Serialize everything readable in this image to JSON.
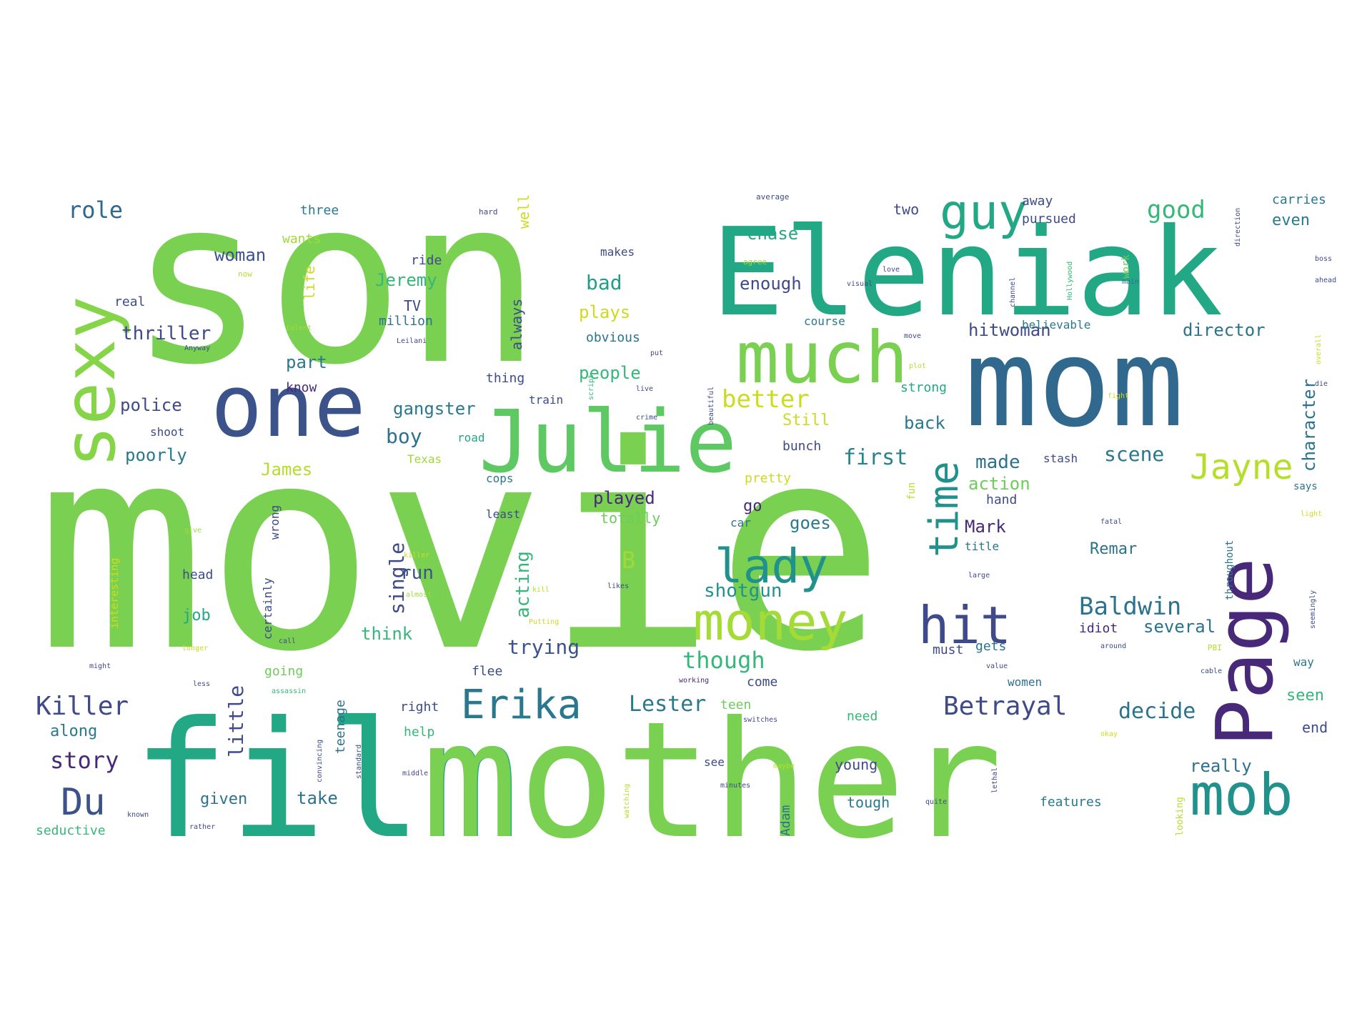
{
  "words": [
    {
      "text": "movie",
      "color": "#7ad151",
      "size": 60
    },
    {
      "text": "son",
      "color": "#7ad151",
      "size": 60
    },
    {
      "text": "film",
      "color": "#22a884",
      "size": 60
    },
    {
      "text": "mother",
      "color": "#7ad151",
      "size": 60
    },
    {
      "text": "Eleniak",
      "color": "#22a884",
      "size": 46
    },
    {
      "text": "mom",
      "color": "#31688e",
      "size": 46
    },
    {
      "text": "one",
      "color": "#3b528b",
      "size": 38
    },
    {
      "text": "Julie",
      "color": "#5ec962",
      "size": 38
    },
    {
      "text": "much",
      "color": "#7ad151",
      "size": 34
    },
    {
      "text": "sexy",
      "color": "#86d549",
      "size": 34
    },
    {
      "text": "Page",
      "color": "#482878",
      "size": 36
    },
    {
      "text": "guy",
      "color": "#22a884",
      "size": 28
    },
    {
      "text": "mob",
      "color": "#21918c",
      "size": 30
    },
    {
      "text": "money",
      "color": "#a5db36",
      "size": 30
    },
    {
      "text": "hit",
      "color": "#3e4a89",
      "size": 30
    },
    {
      "text": "lady",
      "color": "#21918c",
      "size": 28
    },
    {
      "text": "time",
      "color": "#21918c",
      "size": 26
    },
    {
      "text": "Erika",
      "color": "#2a788e",
      "size": 26
    },
    {
      "text": "Jayne",
      "color": "#b5de2b",
      "size": 24
    },
    {
      "text": "Du",
      "color": "#3b528b",
      "size": 24
    },
    {
      "text": "Betrayal",
      "color": "#3e4a89",
      "size": 16
    },
    {
      "text": "Killer",
      "color": "#3e4a89",
      "size": 16
    },
    {
      "text": "Baldwin",
      "color": "#2c728e",
      "size": 16
    },
    {
      "text": "good",
      "color": "#35b779",
      "size": 16
    },
    {
      "text": "role",
      "color": "#31688e",
      "size": 16
    },
    {
      "text": "better",
      "color": "#cddb1f",
      "size": 15
    },
    {
      "text": "though",
      "color": "#35b779",
      "size": 15
    },
    {
      "text": "Lester",
      "color": "#2a788e",
      "size": 14
    },
    {
      "text": "story",
      "color": "#482878",
      "size": 14
    },
    {
      "text": "little",
      "color": "#3e4a89",
      "size": 14
    },
    {
      "text": "decide",
      "color": "#2c728e",
      "size": 14
    },
    {
      "text": "trying",
      "color": "#3b528b",
      "size": 13
    },
    {
      "text": "bad",
      "color": "#1f9e89",
      "size": 13
    },
    {
      "text": "first",
      "color": "#26828e",
      "size": 13
    },
    {
      "text": "scene",
      "color": "#2a788e",
      "size": 13
    },
    {
      "text": "shotgun",
      "color": "#21918c",
      "size": 13
    },
    {
      "text": "single",
      "color": "#3e4a89",
      "size": 13
    },
    {
      "text": "acting",
      "color": "#35b779",
      "size": 12
    },
    {
      "text": "thriller",
      "color": "#3e4a89",
      "size": 12
    },
    {
      "text": "boy",
      "color": "#2c728e",
      "size": 13
    },
    {
      "text": "made",
      "color": "#2c728e",
      "size": 12
    },
    {
      "text": "character",
      "color": "#2c728e",
      "size": 12
    },
    {
      "text": "director",
      "color": "#2c728e",
      "size": 11
    },
    {
      "text": "B",
      "color": "#a0da39",
      "size": 13
    },
    {
      "text": "think",
      "color": "#35b779",
      "size": 11
    },
    {
      "text": "run",
      "color": "#3b528b",
      "size": 11
    },
    {
      "text": "chase",
      "color": "#22a884",
      "size": 11
    },
    {
      "text": "enough",
      "color": "#3e4a89",
      "size": 11
    },
    {
      "text": "action",
      "color": "#6ccd5a",
      "size": 11
    },
    {
      "text": "woman",
      "color": "#3b528b",
      "size": 11
    },
    {
      "text": "Jeremy",
      "color": "#35b779",
      "size": 11
    },
    {
      "text": "part",
      "color": "#2a788e",
      "size": 11
    },
    {
      "text": "police",
      "color": "#3e4a89",
      "size": 11
    },
    {
      "text": "poorly",
      "color": "#2a788e",
      "size": 11
    },
    {
      "text": "people",
      "color": "#35b779",
      "size": 11
    },
    {
      "text": "plays",
      "color": "#cddb1f",
      "size": 11
    },
    {
      "text": "played",
      "color": "#482878",
      "size": 11
    },
    {
      "text": "goes",
      "color": "#2a788e",
      "size": 11
    },
    {
      "text": "gangster",
      "color": "#2a788e",
      "size": 11
    },
    {
      "text": "hitwoman",
      "color": "#3e4a89",
      "size": 11
    },
    {
      "text": "Remar",
      "color": "#2c728e",
      "size": 10
    },
    {
      "text": "several",
      "color": "#2c728e",
      "size": 11
    },
    {
      "text": "really",
      "color": "#2c728e",
      "size": 11
    },
    {
      "text": "seen",
      "color": "#35b779",
      "size": 11
    },
    {
      "text": "along",
      "color": "#2a788e",
      "size": 11
    },
    {
      "text": "given",
      "color": "#2c728e",
      "size": 11
    },
    {
      "text": "take",
      "color": "#2c728e",
      "size": 11
    },
    {
      "text": "James",
      "color": "#b5de2b",
      "size": 11
    },
    {
      "text": "Mark",
      "color": "#482878",
      "size": 11
    },
    {
      "text": "back",
      "color": "#2a788e",
      "size": 11
    },
    {
      "text": "Still",
      "color": "#cddb1f",
      "size": 11
    },
    {
      "text": "always",
      "color": "#3e4a89",
      "size": 10
    },
    {
      "text": "well",
      "color": "#cddb1f",
      "size": 10
    },
    {
      "text": "life",
      "color": "#cddb1f",
      "size": 10
    },
    {
      "text": "two",
      "color": "#3e4a89",
      "size": 10
    },
    {
      "text": "three",
      "color": "#2a788e",
      "size": 10
    },
    {
      "text": "wants",
      "color": "#a0da39",
      "size": 10
    },
    {
      "text": "ride",
      "color": "#3e4a89",
      "size": 10
    },
    {
      "text": "makes",
      "color": "#3e4a89",
      "size": 9
    },
    {
      "text": "TV",
      "color": "#3e4a89",
      "size": 10
    },
    {
      "text": "million",
      "color": "#2c728e",
      "size": 10
    },
    {
      "text": "real",
      "color": "#3e4a89",
      "size": 10
    },
    {
      "text": "obvious",
      "color": "#2c728e",
      "size": 10
    },
    {
      "text": "thing",
      "color": "#3e4a89",
      "size": 10
    },
    {
      "text": "know",
      "color": "#482878",
      "size": 10
    },
    {
      "text": "shoot",
      "color": "#3e4a89",
      "size": 9
    },
    {
      "text": "road",
      "color": "#22a884",
      "size": 9
    },
    {
      "text": "Texas",
      "color": "#a0da39",
      "size": 9
    },
    {
      "text": "cops",
      "color": "#2a788e",
      "size": 9
    },
    {
      "text": "least",
      "color": "#3e4a89",
      "size": 9
    },
    {
      "text": "go",
      "color": "#482878",
      "size": 11
    },
    {
      "text": "totally",
      "color": "#6ccd5a",
      "size": 10
    },
    {
      "text": "car",
      "color": "#2c728e",
      "size": 9
    },
    {
      "text": "pretty",
      "color": "#cddb1f",
      "size": 10
    },
    {
      "text": "fun",
      "color": "#b5de2b",
      "size": 9
    },
    {
      "text": "hand",
      "color": "#3e4a89",
      "size": 9
    },
    {
      "text": "stash",
      "color": "#3e4a89",
      "size": 9
    },
    {
      "text": "bunch",
      "color": "#3e4a89",
      "size": 9
    },
    {
      "text": "believable",
      "color": "#2a788e",
      "size": 9
    },
    {
      "text": "course",
      "color": "#2a788e",
      "size": 9
    },
    {
      "text": "pursued",
      "color": "#3e4a89",
      "size": 9
    },
    {
      "text": "away",
      "color": "#3e4a89",
      "size": 9
    },
    {
      "text": "carries",
      "color": "#2a788e",
      "size": 9
    },
    {
      "text": "even",
      "color": "#2a788e",
      "size": 10
    },
    {
      "text": "strong",
      "color": "#22a884",
      "size": 9
    },
    {
      "text": "head",
      "color": "#3e4a89",
      "size": 9
    },
    {
      "text": "job",
      "color": "#22a884",
      "size": 10
    },
    {
      "text": "certainly",
      "color": "#3e4a89",
      "size": 9
    },
    {
      "text": "wrong",
      "color": "#3e4a89",
      "size": 9
    },
    {
      "text": "interesting",
      "color": "#cddb1f",
      "size": 9
    },
    {
      "text": "going",
      "color": "#6ccd5a",
      "size": 9
    },
    {
      "text": "flee",
      "color": "#3e4a89",
      "size": 9
    },
    {
      "text": "come",
      "color": "#3e4a89",
      "size": 9
    },
    {
      "text": "right",
      "color": "#3e4a89",
      "size": 9
    },
    {
      "text": "help",
      "color": "#35b779",
      "size": 9
    },
    {
      "text": "teen",
      "color": "#6ccd5a",
      "size": 9
    },
    {
      "text": "need",
      "color": "#35b779",
      "size": 9
    },
    {
      "text": "see",
      "color": "#3e4a89",
      "size": 9
    },
    {
      "text": "young",
      "color": "#3e4a89",
      "size": 9
    },
    {
      "text": "tough",
      "color": "#2a788e",
      "size": 9
    },
    {
      "text": "features",
      "color": "#2a788e",
      "size": 9
    },
    {
      "text": "Adam",
      "color": "#2c728e",
      "size": 9
    },
    {
      "text": "teenage",
      "color": "#2c728e",
      "size": 9
    },
    {
      "text": "seductive",
      "color": "#35b779",
      "size": 9
    },
    {
      "text": "end",
      "color": "#3e4a89",
      "size": 9
    },
    {
      "text": "idiot",
      "color": "#482878",
      "size": 9
    },
    {
      "text": "gets",
      "color": "#2c728e",
      "size": 9
    },
    {
      "text": "must",
      "color": "#3e4a89",
      "size": 9
    },
    {
      "text": "women",
      "color": "#2c728e",
      "size": 9
    },
    {
      "text": "title",
      "color": "#2c728e",
      "size": 9
    },
    {
      "text": "train",
      "color": "#3e4a89",
      "size": 9
    },
    {
      "text": "throughout",
      "color": "#2c728e",
      "size": 8
    },
    {
      "text": "looking",
      "color": "#b5de2b",
      "size": 8
    },
    {
      "text": "way",
      "color": "#2a788e",
      "size": 8
    },
    {
      "text": "says",
      "color": "#2c728e",
      "size": 8
    },
    {
      "text": "average",
      "color": "#3e4a89",
      "size": 7
    },
    {
      "text": "hard",
      "color": "#3e4a89",
      "size": 7
    },
    {
      "text": "now",
      "color": "#b5de2b",
      "size": 7
    },
    {
      "text": "Anyway",
      "color": "#3e4a89",
      "size": 7
    },
    {
      "text": "talent",
      "color": "#a0da39",
      "size": 7
    },
    {
      "text": "Leilani",
      "color": "#3e4a89",
      "size": 7
    },
    {
      "text": "agree",
      "color": "#a0da39",
      "size": 7
    },
    {
      "text": "love",
      "color": "#3e4a89",
      "size": 7
    },
    {
      "text": "visual",
      "color": "#3e4a89",
      "size": 7
    },
    {
      "text": "channel",
      "color": "#3e4a89",
      "size": 7
    },
    {
      "text": "Hollywood",
      "color": "#35b779",
      "size": 7
    },
    {
      "text": "work",
      "color": "#6ccd5a",
      "size": 7
    },
    {
      "text": "main",
      "color": "#2c728e",
      "size": 7
    },
    {
      "text": "boss",
      "color": "#3e4a89",
      "size": 7
    },
    {
      "text": "ahead",
      "color": "#3e4a89",
      "size": 7
    },
    {
      "text": "direction",
      "color": "#3e4a89",
      "size": 7
    },
    {
      "text": "move",
      "color": "#3e4a89",
      "size": 7
    },
    {
      "text": "plot",
      "color": "#b5de2b",
      "size": 7
    },
    {
      "text": "put",
      "color": "#3e4a89",
      "size": 7
    },
    {
      "text": "beautiful",
      "color": "#3e4a89",
      "size": 7
    },
    {
      "text": "script",
      "color": "#35b779",
      "size": 7
    },
    {
      "text": "live",
      "color": "#3e4a89",
      "size": 7
    },
    {
      "text": "crime",
      "color": "#3e4a89",
      "size": 7
    },
    {
      "text": "fight",
      "color": "#cddb1f",
      "size": 7
    },
    {
      "text": "overall",
      "color": "#cddb1f",
      "size": 7
    },
    {
      "text": "die",
      "color": "#3e4a89",
      "size": 7
    },
    {
      "text": "give",
      "color": "#a0da39",
      "size": 7
    },
    {
      "text": "killer",
      "color": "#cddb1f",
      "size": 7
    },
    {
      "text": "almost",
      "color": "#a0da39",
      "size": 7
    },
    {
      "text": "kill",
      "color": "#b5de2b",
      "size": 7
    },
    {
      "text": "likes",
      "color": "#3e4a89",
      "size": 7
    },
    {
      "text": "Putting",
      "color": "#cddb1f",
      "size": 7
    },
    {
      "text": "call",
      "color": "#3e4a89",
      "size": 7
    },
    {
      "text": "longer",
      "color": "#cddb1f",
      "size": 7
    },
    {
      "text": "might",
      "color": "#3e4a89",
      "size": 7
    },
    {
      "text": "less",
      "color": "#3e4a89",
      "size": 7
    },
    {
      "text": "assassin",
      "color": "#35b779",
      "size": 7
    },
    {
      "text": "working",
      "color": "#482878",
      "size": 7
    },
    {
      "text": "value",
      "color": "#3e4a89",
      "size": 7
    },
    {
      "text": "cable",
      "color": "#3e4a89",
      "size": 7
    },
    {
      "text": "around",
      "color": "#3e4a89",
      "size": 7
    },
    {
      "text": "PBI",
      "color": "#b5de2b",
      "size": 7
    },
    {
      "text": "large",
      "color": "#3e4a89",
      "size": 7
    },
    {
      "text": "fatal",
      "color": "#3e4a89",
      "size": 7
    },
    {
      "text": "light",
      "color": "#cddb1f",
      "size": 7
    },
    {
      "text": "seemingly",
      "color": "#3e4a89",
      "size": 7
    },
    {
      "text": "convincing",
      "color": "#3e4a89",
      "size": 7
    },
    {
      "text": "standard",
      "color": "#3e4a89",
      "size": 7
    },
    {
      "text": "switches",
      "color": "#3e4a89",
      "size": 7
    },
    {
      "text": "okay",
      "color": "#cddb1f",
      "size": 7
    },
    {
      "text": "maybe",
      "color": "#b5de2b",
      "size": 7
    },
    {
      "text": "lethal",
      "color": "#3e4a89",
      "size": 7
    },
    {
      "text": "middle",
      "color": "#3e4a89",
      "size": 7
    },
    {
      "text": "minutes",
      "color": "#3e4a89",
      "size": 7
    },
    {
      "text": "watching",
      "color": "#b5de2b",
      "size": 7
    },
    {
      "text": "quite",
      "color": "#3e4a89",
      "size": 7
    },
    {
      "text": "known",
      "color": "#3e4a89",
      "size": 7
    },
    {
      "text": "rather",
      "color": "#3e4a89",
      "size": 7
    }
  ]
}
